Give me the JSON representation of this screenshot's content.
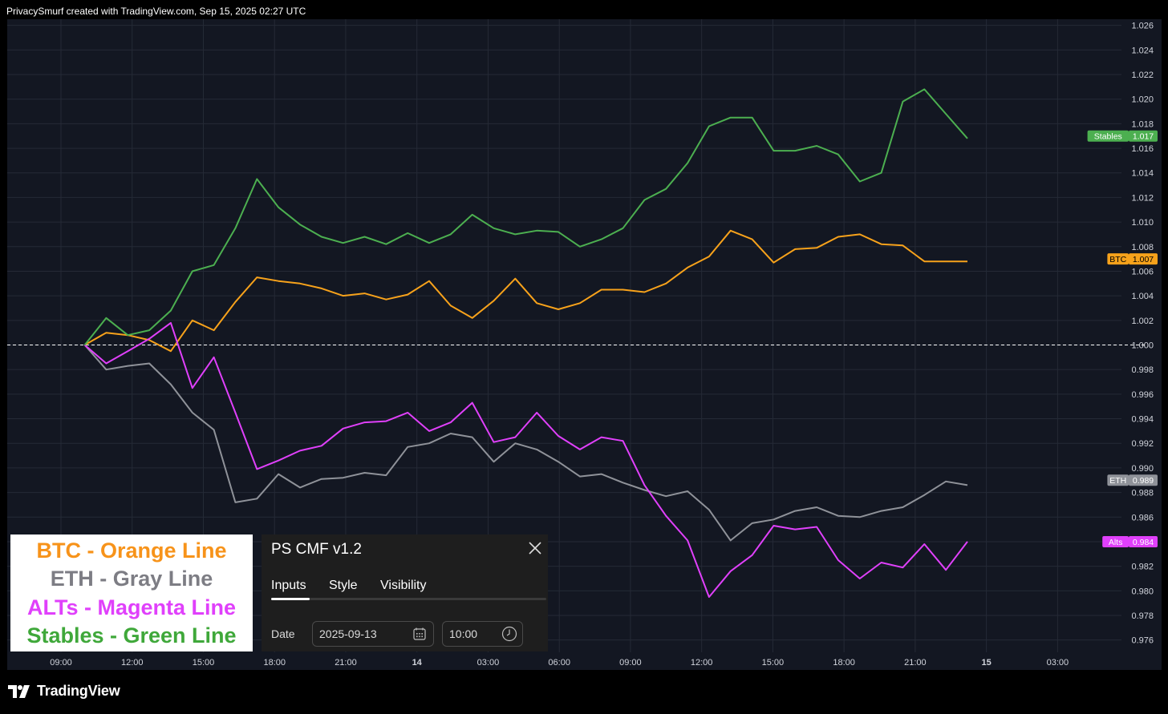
{
  "header": {
    "text": "PrivacySmurf created with TradingView.com, Sep 15, 2025 02:27 UTC"
  },
  "colors": {
    "background": "#131722",
    "grid": "#252a36",
    "btc": "#f7a21b",
    "eth": "#8f9299",
    "alts": "#e040fb",
    "stables": "#4caf50",
    "baseline": "#ffffff"
  },
  "chart_data": {
    "type": "line",
    "x": [
      "09:00",
      "10:00",
      "11:00",
      "12:00",
      "13:00",
      "14:00",
      "15:00",
      "16:00",
      "17:00",
      "18:00",
      "19:00",
      "20:00",
      "21:00",
      "22:00",
      "23:00",
      "14",
      "01:00",
      "02:00",
      "03:00",
      "04:00",
      "05:00",
      "06:00",
      "07:00",
      "08:00",
      "09:00",
      "10:00",
      "11:00",
      "12:00",
      "13:00",
      "14:00",
      "15:00",
      "16:00",
      "17:00",
      "18:00",
      "19:00",
      "20:00",
      "21:00",
      "22:00",
      "23:00",
      "15",
      "01:00",
      "02:00"
    ],
    "x_start": "09:00",
    "x_end": "02:30",
    "x_ticks": [
      "09:00",
      "12:00",
      "15:00",
      "18:00",
      "21:00",
      "14",
      "03:00",
      "06:00",
      "09:00",
      "12:00",
      "15:00",
      "18:00",
      "21:00",
      "15",
      "03:00"
    ],
    "ylim": [
      0.975,
      1.0265
    ],
    "y_ticks": [
      "1.026",
      "1.024",
      "1.022",
      "1.020",
      "1.018",
      "1.016",
      "1.014",
      "1.012",
      "1.010",
      "1.008",
      "1.006",
      "1.004",
      "1.002",
      "1.000",
      "0.998",
      "0.996",
      "0.994",
      "0.992",
      "0.990",
      "0.988",
      "0.986",
      "0.984",
      "0.982",
      "0.980",
      "0.978",
      "0.976"
    ],
    "baseline": 1.0,
    "grid": true,
    "series": [
      {
        "name": "BTC",
        "color": "#f7a21b",
        "last_label": "1.007",
        "values": [
          1.0,
          1.001,
          1.0008,
          1.0004,
          0.9995,
          1.002,
          1.0012,
          1.0035,
          1.0055,
          1.0052,
          1.005,
          1.0046,
          1.004,
          1.0042,
          1.0037,
          1.0041,
          1.0052,
          1.0032,
          1.0022,
          1.0036,
          1.0054,
          1.0034,
          1.0029,
          1.0034,
          1.0045,
          1.0045,
          1.0043,
          1.005,
          1.0063,
          1.0072,
          1.0093,
          1.0086,
          1.0067,
          1.0078,
          1.0079,
          1.0088,
          1.009,
          1.0082,
          1.0081,
          1.0068,
          1.0068,
          1.0068
        ]
      },
      {
        "name": "ETH",
        "color": "#8f9299",
        "last_label": "0.989",
        "values": [
          1.0,
          0.998,
          0.9983,
          0.9985,
          0.9968,
          0.9945,
          0.9931,
          0.9872,
          0.9875,
          0.9895,
          0.9884,
          0.9891,
          0.9892,
          0.9896,
          0.9894,
          0.9917,
          0.992,
          0.9928,
          0.9925,
          0.9905,
          0.992,
          0.9915,
          0.9905,
          0.9893,
          0.9895,
          0.9888,
          0.9882,
          0.9877,
          0.9881,
          0.9866,
          0.9841,
          0.9855,
          0.9858,
          0.9865,
          0.9868,
          0.9861,
          0.986,
          0.9865,
          0.9868,
          0.9878,
          0.9889,
          0.9886
        ]
      },
      {
        "name": "Alts",
        "color": "#e040fb",
        "last_label": "0.984",
        "values": [
          1.0,
          0.9985,
          0.9995,
          1.0005,
          1.0018,
          0.9965,
          0.999,
          0.9945,
          0.9899,
          0.9906,
          0.9914,
          0.9918,
          0.9932,
          0.9937,
          0.9938,
          0.9945,
          0.993,
          0.9937,
          0.9953,
          0.9921,
          0.9925,
          0.9945,
          0.9926,
          0.9915,
          0.9925,
          0.9922,
          0.9886,
          0.9861,
          0.9841,
          0.9795,
          0.9816,
          0.9829,
          0.9853,
          0.985,
          0.9852,
          0.9825,
          0.981,
          0.9823,
          0.9819,
          0.9838,
          0.9817,
          0.984
        ]
      },
      {
        "name": "Stables",
        "color": "#4caf50",
        "last_label": "1.017",
        "values": [
          1.0,
          1.0022,
          1.0008,
          1.0012,
          1.0028,
          1.006,
          1.0065,
          1.0095,
          1.0135,
          1.0112,
          1.0098,
          1.0088,
          1.0083,
          1.0088,
          1.0082,
          1.0091,
          1.0083,
          1.009,
          1.0106,
          1.0095,
          1.009,
          1.0093,
          1.0092,
          1.008,
          1.0086,
          1.0095,
          1.0118,
          1.0127,
          1.0148,
          1.0178,
          1.0185,
          1.0185,
          1.0158,
          1.0158,
          1.0162,
          1.0155,
          1.0133,
          1.014,
          1.0198,
          1.0208,
          1.0188,
          1.0168
        ]
      }
    ]
  },
  "legend": {
    "items": [
      {
        "text": "BTC - Orange Line",
        "color": "#f7931a"
      },
      {
        "text": "ETH - Gray Line",
        "color": "#7d7d84"
      },
      {
        "text": "ALTs - Magenta Line",
        "color": "#e040fb"
      },
      {
        "text": "Stables - Green Line",
        "color": "#3fa83a"
      }
    ]
  },
  "dialog": {
    "title": "PS CMF v1.2",
    "tabs": [
      "Inputs",
      "Style",
      "Visibility"
    ],
    "active_tab": 0,
    "date_label": "Date",
    "date_value": "2025-09-13",
    "time_value": "10:00"
  },
  "footer": {
    "brand": "TradingView"
  }
}
